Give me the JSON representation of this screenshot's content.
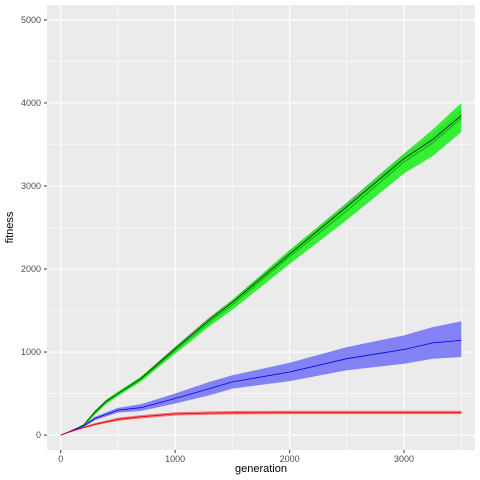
{
  "chart_data": {
    "type": "line",
    "xlabel": "generation",
    "ylabel": "fitness",
    "xlim": [
      -120,
      3620
    ],
    "ylim": [
      -180,
      5180
    ],
    "x_ticks": [
      0,
      1000,
      2000,
      3000
    ],
    "x_tick_labels": [
      "0",
      "1000",
      "2000",
      "3000"
    ],
    "y_ticks": [
      0,
      1000,
      2000,
      3000,
      4000,
      5000
    ],
    "y_tick_labels": [
      "0",
      "1000",
      "2000",
      "3000",
      "4000",
      "5000"
    ],
    "grid": true,
    "legend": "none",
    "panel_background": "#ebebeb",
    "grid_color": "#ffffff",
    "x": [
      0,
      100,
      200,
      300,
      400,
      500,
      700,
      1000,
      1300,
      1500,
      2000,
      2500,
      3000,
      3250,
      3500
    ],
    "series": [
      {
        "color": "#1a1a1a",
        "band_color": "#7f7f7f",
        "values": [
          0,
          50,
          120,
          280,
          410,
          500,
          680,
          1040,
          1390,
          1600,
          2180,
          2750,
          3330,
          3560,
          3850
        ],
        "lower": [
          0,
          45,
          110,
          265,
          395,
          485,
          665,
          1020,
          1365,
          1575,
          2150,
          2710,
          3280,
          3505,
          3790
        ],
        "upper": [
          0,
          55,
          130,
          295,
          425,
          515,
          700,
          1065,
          1420,
          1630,
          2220,
          2800,
          3390,
          3625,
          3930
        ]
      },
      {
        "color": "#00aa00",
        "band_color": "#22ee22",
        "values": [
          0,
          50,
          115,
          270,
          400,
          495,
          670,
          1020,
          1360,
          1570,
          2150,
          2700,
          3290,
          3520,
          3820
        ],
        "lower": [
          0,
          40,
          100,
          245,
          375,
          470,
          640,
          980,
          1310,
          1510,
          2060,
          2590,
          3150,
          3360,
          3650
        ],
        "upper": [
          0,
          60,
          130,
          300,
          430,
          525,
          700,
          1060,
          1410,
          1630,
          2230,
          2790,
          3390,
          3680,
          4000
        ]
      },
      {
        "color": "#0000dd",
        "band_color": "#7777f5",
        "values": [
          0,
          55,
          110,
          200,
          250,
          300,
          330,
          440,
          560,
          640,
          760,
          920,
          1030,
          1110,
          1140
        ],
        "lower": [
          0,
          45,
          95,
          180,
          225,
          270,
          290,
          380,
          480,
          560,
          650,
          780,
          860,
          920,
          940
        ],
        "upper": [
          0,
          65,
          125,
          220,
          275,
          330,
          370,
          500,
          640,
          720,
          870,
          1060,
          1200,
          1300,
          1370
        ]
      },
      {
        "color": "#dd0000",
        "band_color": "#f46b6b",
        "values": [
          0,
          50,
          90,
          130,
          160,
          190,
          220,
          255,
          265,
          268,
          270,
          270,
          270,
          270,
          270
        ],
        "lower": [
          0,
          40,
          80,
          115,
          145,
          170,
          200,
          235,
          245,
          248,
          250,
          250,
          250,
          250,
          250
        ],
        "upper": [
          0,
          60,
          100,
          145,
          175,
          210,
          240,
          275,
          285,
          290,
          292,
          292,
          292,
          292,
          292
        ]
      }
    ]
  }
}
